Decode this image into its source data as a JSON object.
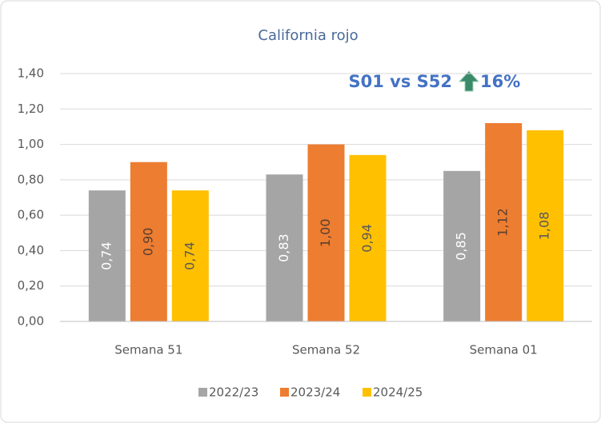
{
  "chart_data": {
    "type": "bar",
    "title": "California rojo",
    "annotation": {
      "text": "S01 vs S52",
      "change": "16%"
    },
    "categories": [
      "Semana 51",
      "Semana 52",
      "Semana 01"
    ],
    "series": [
      {
        "name": "2022/23",
        "color": "#a5a5a5",
        "label_color": "#ffffff",
        "values": [
          0.74,
          0.83,
          0.85
        ],
        "value_labels": [
          "0,74",
          "0,83",
          "0,85"
        ]
      },
      {
        "name": "2023/24",
        "color": "#ed7d31",
        "label_color": "#5a4030",
        "values": [
          0.9,
          1.0,
          1.12
        ],
        "value_labels": [
          "0,90",
          "1,00",
          "1,12"
        ]
      },
      {
        "name": "2024/25",
        "color": "#ffc000",
        "label_color": "#595959",
        "values": [
          0.74,
          0.94,
          1.08
        ],
        "value_labels": [
          "0,74",
          "0,94",
          "1,08"
        ]
      }
    ],
    "ylim": [
      0,
      1.4
    ],
    "yticks": [
      {
        "value": 0,
        "label": "0,00"
      },
      {
        "value": 0.2,
        "label": "0,20"
      },
      {
        "value": 0.4,
        "label": "0,40"
      },
      {
        "value": 0.6,
        "label": "0,60"
      },
      {
        "value": 0.8,
        "label": "0,80"
      },
      {
        "value": 1.0,
        "label": "1,00"
      },
      {
        "value": 1.2,
        "label": "1,20"
      },
      {
        "value": 1.4,
        "label": "1,40"
      }
    ],
    "grid": true,
    "legend": "bottom"
  }
}
